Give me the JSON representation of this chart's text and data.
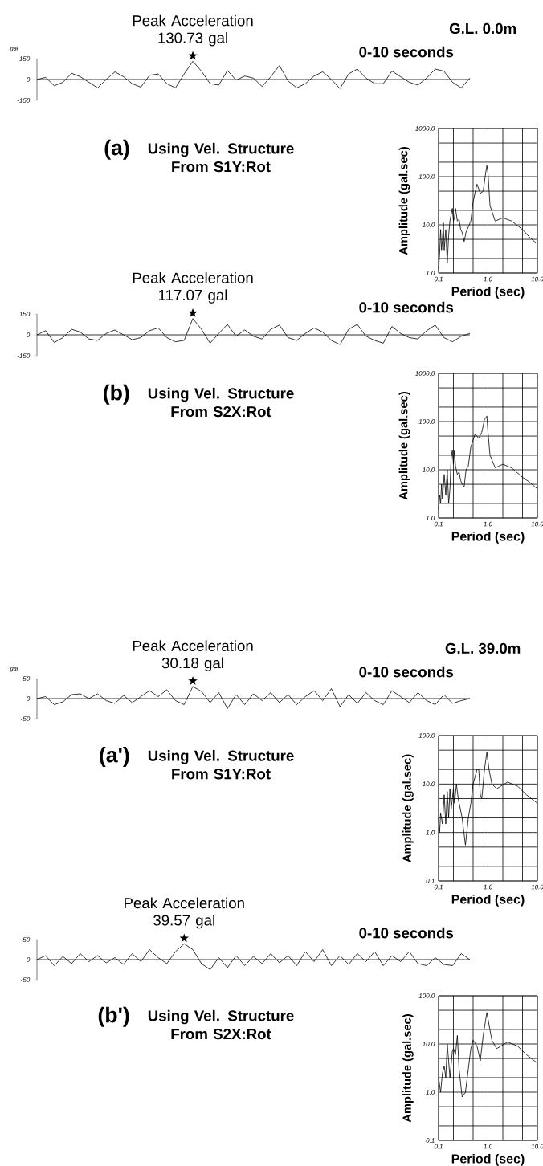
{
  "chart_data": [
    {
      "type": "line",
      "color": "#000000",
      "ylabel": "gal",
      "annotations": [
        {
          "text": "Peak Acceleration 130.73 gal",
          "y": 130.73
        },
        "G.L. 0.0m",
        "0-10 seconds"
      ],
      "ylim": [
        -150,
        150
      ],
      "yticks": [
        -150,
        0,
        150
      ],
      "tick_labels": "y",
      "categories": [
        null,
        null,
        null,
        null,
        null,
        null,
        null,
        null,
        null,
        null,
        null,
        null,
        null,
        null,
        null,
        null,
        null,
        null,
        null,
        null,
        null,
        null,
        null,
        null,
        null,
        null,
        null,
        null,
        null,
        null,
        null,
        null,
        null,
        null,
        null,
        null,
        null,
        null,
        null,
        null,
        null,
        null,
        null,
        null,
        null,
        null,
        null,
        null,
        null,
        null,
        null
      ],
      "values": [
        0,
        15,
        -45,
        -20,
        45,
        20,
        -20,
        -60,
        0,
        55,
        20,
        -30,
        -55,
        30,
        40,
        -30,
        -60,
        40,
        130.73,
        60,
        -30,
        -40,
        65,
        -5,
        25,
        10,
        -50,
        20,
        100,
        -10,
        -60,
        -30,
        25,
        55,
        0,
        -65,
        40,
        75,
        10,
        -30,
        -30,
        60,
        20,
        -20,
        -40,
        10,
        75,
        60,
        -20,
        -60,
        10
      ]
    },
    {
      "type": "line",
      "color": "#000000",
      "log": "xy",
      "grid": true,
      "xlabel": "Period (sec)",
      "ylabel": "Amplitude (gal.sec)",
      "annotations": [
        "(a)",
        "Using Vel. Structure From S1Y:Rot"
      ],
      "xlim": [
        0.1,
        10
      ],
      "ylim": [
        1,
        1000
      ],
      "xticks": [
        {
          "value": 0.1,
          "label": "0.1"
        },
        {
          "value": 1,
          "label": "1.0"
        },
        {
          "value": 10,
          "label": "10.0"
        }
      ],
      "yticks": [
        {
          "value": 1,
          "label": "1.0"
        },
        {
          "value": 10,
          "label": "10.0"
        },
        {
          "value": 100,
          "label": "100.0"
        },
        {
          "value": 1000,
          "label": "1000.0"
        }
      ],
      "x": [
        0.1,
        0.105,
        0.11,
        0.115,
        0.12,
        0.125,
        0.13,
        0.14,
        0.15,
        0.16,
        0.17,
        0.19,
        0.2,
        0.21,
        0.22,
        0.24,
        0.26,
        0.28,
        0.3,
        0.33,
        0.36,
        0.4,
        0.45,
        0.5,
        0.6,
        0.7,
        0.8,
        0.9,
        0.95,
        1.0,
        1.1,
        1.4,
        2.0,
        3.0,
        5.0,
        7.0,
        10
      ],
      "values": [
        1.2,
        2.5,
        8,
        3,
        5,
        11,
        3,
        8,
        1.6,
        6,
        12,
        22,
        12,
        14,
        22,
        12,
        13,
        8,
        7,
        4.5,
        7,
        9,
        12,
        30,
        70,
        45,
        50,
        120,
        170,
        120,
        25,
        12,
        14,
        12,
        8,
        5.5,
        4
      ]
    },
    {
      "type": "line",
      "color": "#000000",
      "annotations": [
        {
          "text": "Peak Acceleration 117.07 gal",
          "y": 117.07
        },
        "0-10 seconds"
      ],
      "ylim": [
        -150,
        150
      ],
      "yticks": [
        -150,
        0,
        150
      ],
      "tick_labels": "y",
      "categories": [
        null,
        null,
        null,
        null,
        null,
        null,
        null,
        null,
        null,
        null,
        null,
        null,
        null,
        null,
        null,
        null,
        null,
        null,
        null,
        null,
        null,
        null,
        null,
        null,
        null,
        null,
        null,
        null,
        null,
        null,
        null,
        null,
        null,
        null,
        null,
        null,
        null,
        null,
        null,
        null,
        null,
        null,
        null,
        null,
        null,
        null,
        null,
        null,
        null,
        null,
        null
      ],
      "values": [
        0,
        30,
        -55,
        -20,
        40,
        20,
        -30,
        -40,
        10,
        35,
        0,
        -35,
        -20,
        30,
        50,
        -20,
        -50,
        -40,
        117.07,
        40,
        -60,
        10,
        75,
        -10,
        35,
        -10,
        -30,
        40,
        70,
        -20,
        -40,
        10,
        50,
        20,
        -40,
        -70,
        40,
        75,
        -10,
        -40,
        -60,
        60,
        10,
        -20,
        -30,
        30,
        70,
        -20,
        -50,
        -10,
        10
      ]
    },
    {
      "type": "line",
      "color": "#000000",
      "log": "xy",
      "grid": true,
      "xlabel": "Period (sec)",
      "ylabel": "Amplitude (gal.sec)",
      "annotations": [
        "(b)",
        "Using Vel. Structure From S2X:Rot"
      ],
      "xlim": [
        0.1,
        10
      ],
      "ylim": [
        1,
        1000
      ],
      "xticks": [
        {
          "value": 0.1,
          "label": "0.1"
        },
        {
          "value": 1,
          "label": "1.0"
        },
        {
          "value": 10,
          "label": "10.0"
        }
      ],
      "yticks": [
        {
          "value": 1,
          "label": "1.0"
        },
        {
          "value": 10,
          "label": "10.0"
        },
        {
          "value": 100,
          "label": "100.0"
        },
        {
          "value": 1000,
          "label": "1000.0"
        }
      ],
      "x": [
        0.1,
        0.105,
        0.11,
        0.115,
        0.12,
        0.13,
        0.14,
        0.15,
        0.16,
        0.17,
        0.18,
        0.19,
        0.2,
        0.21,
        0.22,
        0.24,
        0.26,
        0.28,
        0.3,
        0.33,
        0.36,
        0.4,
        0.45,
        0.55,
        0.65,
        0.75,
        0.85,
        0.95,
        1.0,
        1.1,
        1.4,
        2.0,
        3.0,
        5.0,
        7.0,
        10
      ],
      "values": [
        1.5,
        3,
        2,
        5,
        2.5,
        8,
        3,
        10,
        2,
        4,
        18,
        25,
        13,
        25,
        12,
        8,
        9,
        6,
        5,
        4.5,
        10,
        12,
        30,
        55,
        45,
        60,
        110,
        130,
        60,
        20,
        11,
        13,
        11,
        7,
        5.5,
        4
      ]
    },
    {
      "type": "line",
      "color": "#000000",
      "ylabel": "gal",
      "annotations": [
        {
          "text": "Peak Acceleration 30.18 gal",
          "y": 30.18
        },
        "G.L. 39.0m",
        "0-10 seconds"
      ],
      "ylim": [
        -50,
        50
      ],
      "yticks": [
        -50,
        0,
        50
      ],
      "tick_labels": "y",
      "categories": [
        null,
        null,
        null,
        null,
        null,
        null,
        null,
        null,
        null,
        null,
        null,
        null,
        null,
        null,
        null,
        null,
        null,
        null,
        null,
        null,
        null,
        null,
        null,
        null,
        null,
        null,
        null,
        null,
        null,
        null,
        null,
        null,
        null,
        null,
        null,
        null,
        null,
        null,
        null,
        null,
        null,
        null,
        null,
        null,
        null,
        null,
        null,
        null,
        null,
        null,
        null
      ],
      "values": [
        0,
        5,
        -15,
        -8,
        10,
        12,
        0,
        12,
        -5,
        -12,
        8,
        -10,
        5,
        20,
        5,
        22,
        -5,
        -15,
        30.18,
        18,
        -10,
        15,
        -25,
        10,
        -15,
        12,
        -5,
        15,
        -10,
        10,
        -15,
        5,
        20,
        -5,
        25,
        -20,
        10,
        -12,
        15,
        -5,
        -15,
        20,
        5,
        -10,
        15,
        -5,
        -15,
        10,
        -12,
        -5,
        0
      ]
    },
    {
      "type": "line",
      "color": "#000000",
      "log": "xy",
      "grid": true,
      "xlabel": "Period (sec)",
      "ylabel": "Amplitude (gal.sec)",
      "annotations": [
        "(a')",
        "Using Vel. Structure From S1Y:Rot"
      ],
      "xlim": [
        0.1,
        10
      ],
      "ylim": [
        0.1,
        100
      ],
      "xticks": [
        {
          "value": 0.1,
          "label": "0.1"
        },
        {
          "value": 1,
          "label": "1.0"
        },
        {
          "value": 10,
          "label": "10.0"
        }
      ],
      "yticks": [
        {
          "value": 0.1,
          "label": "0.1"
        },
        {
          "value": 1,
          "label": "1.0"
        },
        {
          "value": 10,
          "label": "10.0"
        },
        {
          "value": 100,
          "label": "100.0"
        }
      ],
      "x": [
        0.1,
        0.105,
        0.11,
        0.12,
        0.13,
        0.14,
        0.15,
        0.16,
        0.17,
        0.18,
        0.2,
        0.21,
        0.23,
        0.25,
        0.3,
        0.35,
        0.4,
        0.45,
        0.5,
        0.6,
        0.65,
        0.7,
        0.75,
        0.85,
        0.95,
        1.05,
        1.2,
        1.5,
        2.5,
        4,
        6,
        10
      ],
      "values": [
        2,
        1,
        2.5,
        1.5,
        6,
        1.5,
        7,
        2,
        8,
        3,
        8,
        4,
        10,
        5,
        2,
        0.55,
        2,
        4,
        10,
        20,
        20,
        6,
        5,
        20,
        45,
        20,
        10,
        8,
        11,
        9,
        6,
        4
      ]
    },
    {
      "type": "line",
      "color": "#000000",
      "annotations": [
        {
          "text": "Peak Acceleration 39.57 gal",
          "y": 39.57
        },
        "0-10 seconds"
      ],
      "ylim": [
        -50,
        50
      ],
      "yticks": [
        -50,
        0,
        50
      ],
      "tick_labels": "y",
      "categories": [
        null,
        null,
        null,
        null,
        null,
        null,
        null,
        null,
        null,
        null,
        null,
        null,
        null,
        null,
        null,
        null,
        null,
        null,
        null,
        null,
        null,
        null,
        null,
        null,
        null,
        null,
        null,
        null,
        null,
        null,
        null,
        null,
        null,
        null,
        null,
        null,
        null,
        null,
        null,
        null,
        null,
        null,
        null,
        null,
        null,
        null,
        null,
        null,
        null,
        null,
        null
      ],
      "values": [
        0,
        10,
        -15,
        8,
        -10,
        15,
        -5,
        10,
        -8,
        5,
        -12,
        15,
        -5,
        25,
        5,
        -10,
        20,
        39.57,
        25,
        -10,
        -25,
        5,
        -20,
        10,
        -15,
        8,
        -10,
        15,
        -8,
        10,
        -15,
        20,
        -5,
        25,
        -15,
        10,
        -12,
        15,
        -5,
        20,
        -15,
        10,
        -5,
        20,
        -10,
        -15,
        5,
        -12,
        -15,
        15,
        0
      ]
    },
    {
      "type": "line",
      "color": "#000000",
      "log": "xy",
      "grid": true,
      "xlabel": "Period (sec)",
      "ylabel": "Amplitude (gal.sec)",
      "annotations": [
        "(b')",
        "Using Vel. Structure From S2X:Rot"
      ],
      "xlim": [
        0.1,
        10
      ],
      "ylim": [
        0.1,
        100
      ],
      "xticks": [
        {
          "value": 0.1,
          "label": "0.1"
        },
        {
          "value": 1,
          "label": "1.0"
        },
        {
          "value": 10,
          "label": "10.0"
        }
      ],
      "yticks": [
        {
          "value": 0.1,
          "label": "0.1"
        },
        {
          "value": 1,
          "label": "1.0"
        },
        {
          "value": 10,
          "label": "10.0"
        },
        {
          "value": 100,
          "label": "100.0"
        }
      ],
      "x": [
        0.1,
        0.11,
        0.12,
        0.13,
        0.14,
        0.15,
        0.17,
        0.19,
        0.2,
        0.22,
        0.24,
        0.26,
        0.3,
        0.35,
        0.4,
        0.45,
        0.5,
        0.6,
        0.7,
        0.8,
        0.95,
        1.05,
        1.2,
        1.5,
        2.5,
        4,
        6,
        10
      ],
      "values": [
        2,
        1,
        2.5,
        3.5,
        2,
        10,
        2,
        7,
        8,
        6,
        15,
        3,
        0.8,
        1,
        3,
        8,
        12,
        9,
        4.5,
        15,
        45,
        25,
        12,
        8,
        11,
        9,
        6,
        4
      ]
    }
  ]
}
